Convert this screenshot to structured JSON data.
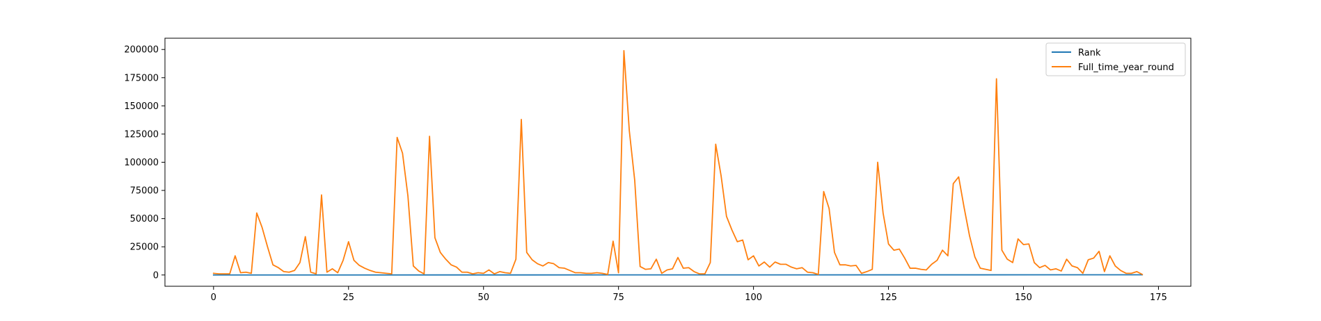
{
  "chart_data": {
    "type": "line",
    "title": "",
    "xlabel": "",
    "ylabel": "",
    "xlim": [
      -9,
      181
    ],
    "ylim": [
      -10000,
      210000
    ],
    "xticks": [
      0,
      25,
      50,
      75,
      100,
      125,
      150,
      175
    ],
    "yticks": [
      0,
      25000,
      50000,
      75000,
      100000,
      125000,
      150000,
      175000,
      200000
    ],
    "xtick_labels": [
      "0",
      "25",
      "50",
      "75",
      "100",
      "125",
      "150",
      "175"
    ],
    "ytick_labels": [
      "0",
      "25000",
      "50000",
      "75000",
      "100000",
      "125000",
      "150000",
      "175000",
      "200000"
    ],
    "grid": false,
    "legend_position": "top-right",
    "series": [
      {
        "name": "Rank",
        "color": "#1f77b4",
        "x": [
          0,
          172
        ],
        "y": [
          1,
          173
        ]
      },
      {
        "name": "Full_time_year_round",
        "color": "#ff7f0e",
        "x": [
          0,
          1,
          2,
          3,
          4,
          5,
          6,
          7,
          8,
          9,
          10,
          11,
          12,
          13,
          14,
          15,
          16,
          17,
          18,
          19,
          20,
          21,
          22,
          23,
          24,
          25,
          26,
          27,
          28,
          29,
          30,
          31,
          32,
          33,
          34,
          35,
          36,
          37,
          38,
          39,
          40,
          41,
          42,
          43,
          44,
          45,
          46,
          47,
          48,
          49,
          50,
          51,
          52,
          53,
          54,
          55,
          56,
          57,
          58,
          59,
          60,
          61,
          62,
          63,
          64,
          65,
          66,
          67,
          68,
          69,
          70,
          71,
          72,
          73,
          74,
          75,
          76,
          77,
          78,
          79,
          80,
          81,
          82,
          83,
          84,
          85,
          86,
          87,
          88,
          89,
          90,
          91,
          92,
          93,
          94,
          95,
          96,
          97,
          98,
          99,
          100,
          101,
          102,
          103,
          104,
          105,
          106,
          107,
          108,
          109,
          110,
          111,
          112,
          113,
          114,
          115,
          116,
          117,
          118,
          119,
          120,
          121,
          122,
          123,
          124,
          125,
          126,
          127,
          128,
          129,
          130,
          131,
          132,
          133,
          134,
          135,
          136,
          137,
          138,
          139,
          140,
          141,
          142,
          143,
          144,
          145,
          146,
          147,
          148,
          149,
          150,
          151,
          152,
          153,
          154,
          155,
          156,
          157,
          158,
          159,
          160,
          161,
          162,
          163,
          164,
          165,
          166,
          167,
          168,
          169,
          170,
          171,
          172
        ],
        "y": [
          1500,
          1000,
          1000,
          1000,
          17000,
          2000,
          2500,
          1500,
          55000,
          42000,
          25000,
          9000,
          6500,
          3000,
          2500,
          4000,
          11000,
          34000,
          2500,
          1000,
          71000,
          2500,
          5500,
          2000,
          13000,
          29500,
          13000,
          8500,
          6000,
          4000,
          2500,
          2000,
          1500,
          1000,
          122000,
          108000,
          70000,
          8000,
          3500,
          1000,
          123000,
          33000,
          20000,
          14000,
          9000,
          7000,
          2500,
          2500,
          1000,
          2000,
          1500,
          4500,
          1000,
          3000,
          2000,
          1500,
          14000,
          138000,
          20000,
          13500,
          10000,
          8000,
          11000,
          10000,
          6500,
          6000,
          4000,
          2000,
          2000,
          1500,
          1500,
          2000,
          1500,
          500,
          30000,
          2000,
          199000,
          128000,
          84000,
          7500,
          5000,
          5500,
          14000,
          1500,
          4500,
          5500,
          15500,
          6000,
          6500,
          3000,
          1000,
          1000,
          11000,
          116000,
          88000,
          52000,
          40000,
          29500,
          31000,
          13500,
          17000,
          8000,
          11500,
          7000,
          11500,
          9500,
          9500,
          7000,
          5500,
          6500,
          2500,
          2000,
          500,
          74000,
          59000,
          20000,
          9000,
          9000,
          8000,
          8500,
          1500,
          3000,
          5000,
          100000,
          55000,
          27500,
          22000,
          23000,
          15000,
          6000,
          6000,
          5000,
          4500,
          9500,
          13000,
          22000,
          17000,
          81000,
          87000,
          60000,
          35000,
          16000,
          6000,
          5000,
          4000,
          174000,
          22000,
          14000,
          11000,
          32000,
          27000,
          27500,
          11000,
          6500,
          8500,
          4500,
          5500,
          3500,
          14000,
          8000,
          6500,
          1500,
          13500,
          15000,
          21000,
          3000,
          17000,
          8000,
          4000,
          1500,
          1500,
          3000,
          500
        ]
      }
    ]
  }
}
